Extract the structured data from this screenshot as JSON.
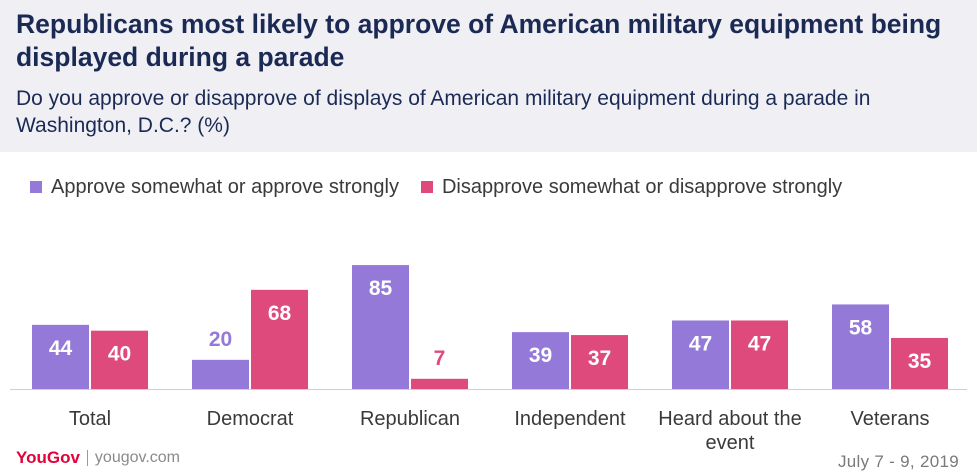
{
  "title": "Republicans most likely to approve of American military equipment being displayed during a parade",
  "subtitle": "Do you approve or disapprove of displays of American military equipment during a parade in Washington, D.C.? (%)",
  "footer": {
    "brand": "YouGov",
    "site": "yougov.com",
    "dates": "July 7 - 9, 2019"
  },
  "colors": {
    "approve": "#9479d8",
    "disapprove": "#df4a7d",
    "header_bg": "#f0f0f4",
    "title": "#1b2a55"
  },
  "chart_data": {
    "type": "bar",
    "categories": [
      [
        "Total"
      ],
      [
        "Democrat"
      ],
      [
        "Republican"
      ],
      [
        "Independent"
      ],
      [
        "Heard about the",
        "event"
      ],
      [
        "Veterans"
      ]
    ],
    "series": [
      {
        "name": "Approve somewhat or approve strongly",
        "values": [
          44,
          20,
          85,
          39,
          47,
          58
        ]
      },
      {
        "name": "Disapprove somewhat or disapprove strongly",
        "values": [
          40,
          68,
          7,
          37,
          47,
          35
        ]
      }
    ],
    "ylim": [
      0,
      100
    ],
    "grid": false,
    "legend": "top-left"
  }
}
